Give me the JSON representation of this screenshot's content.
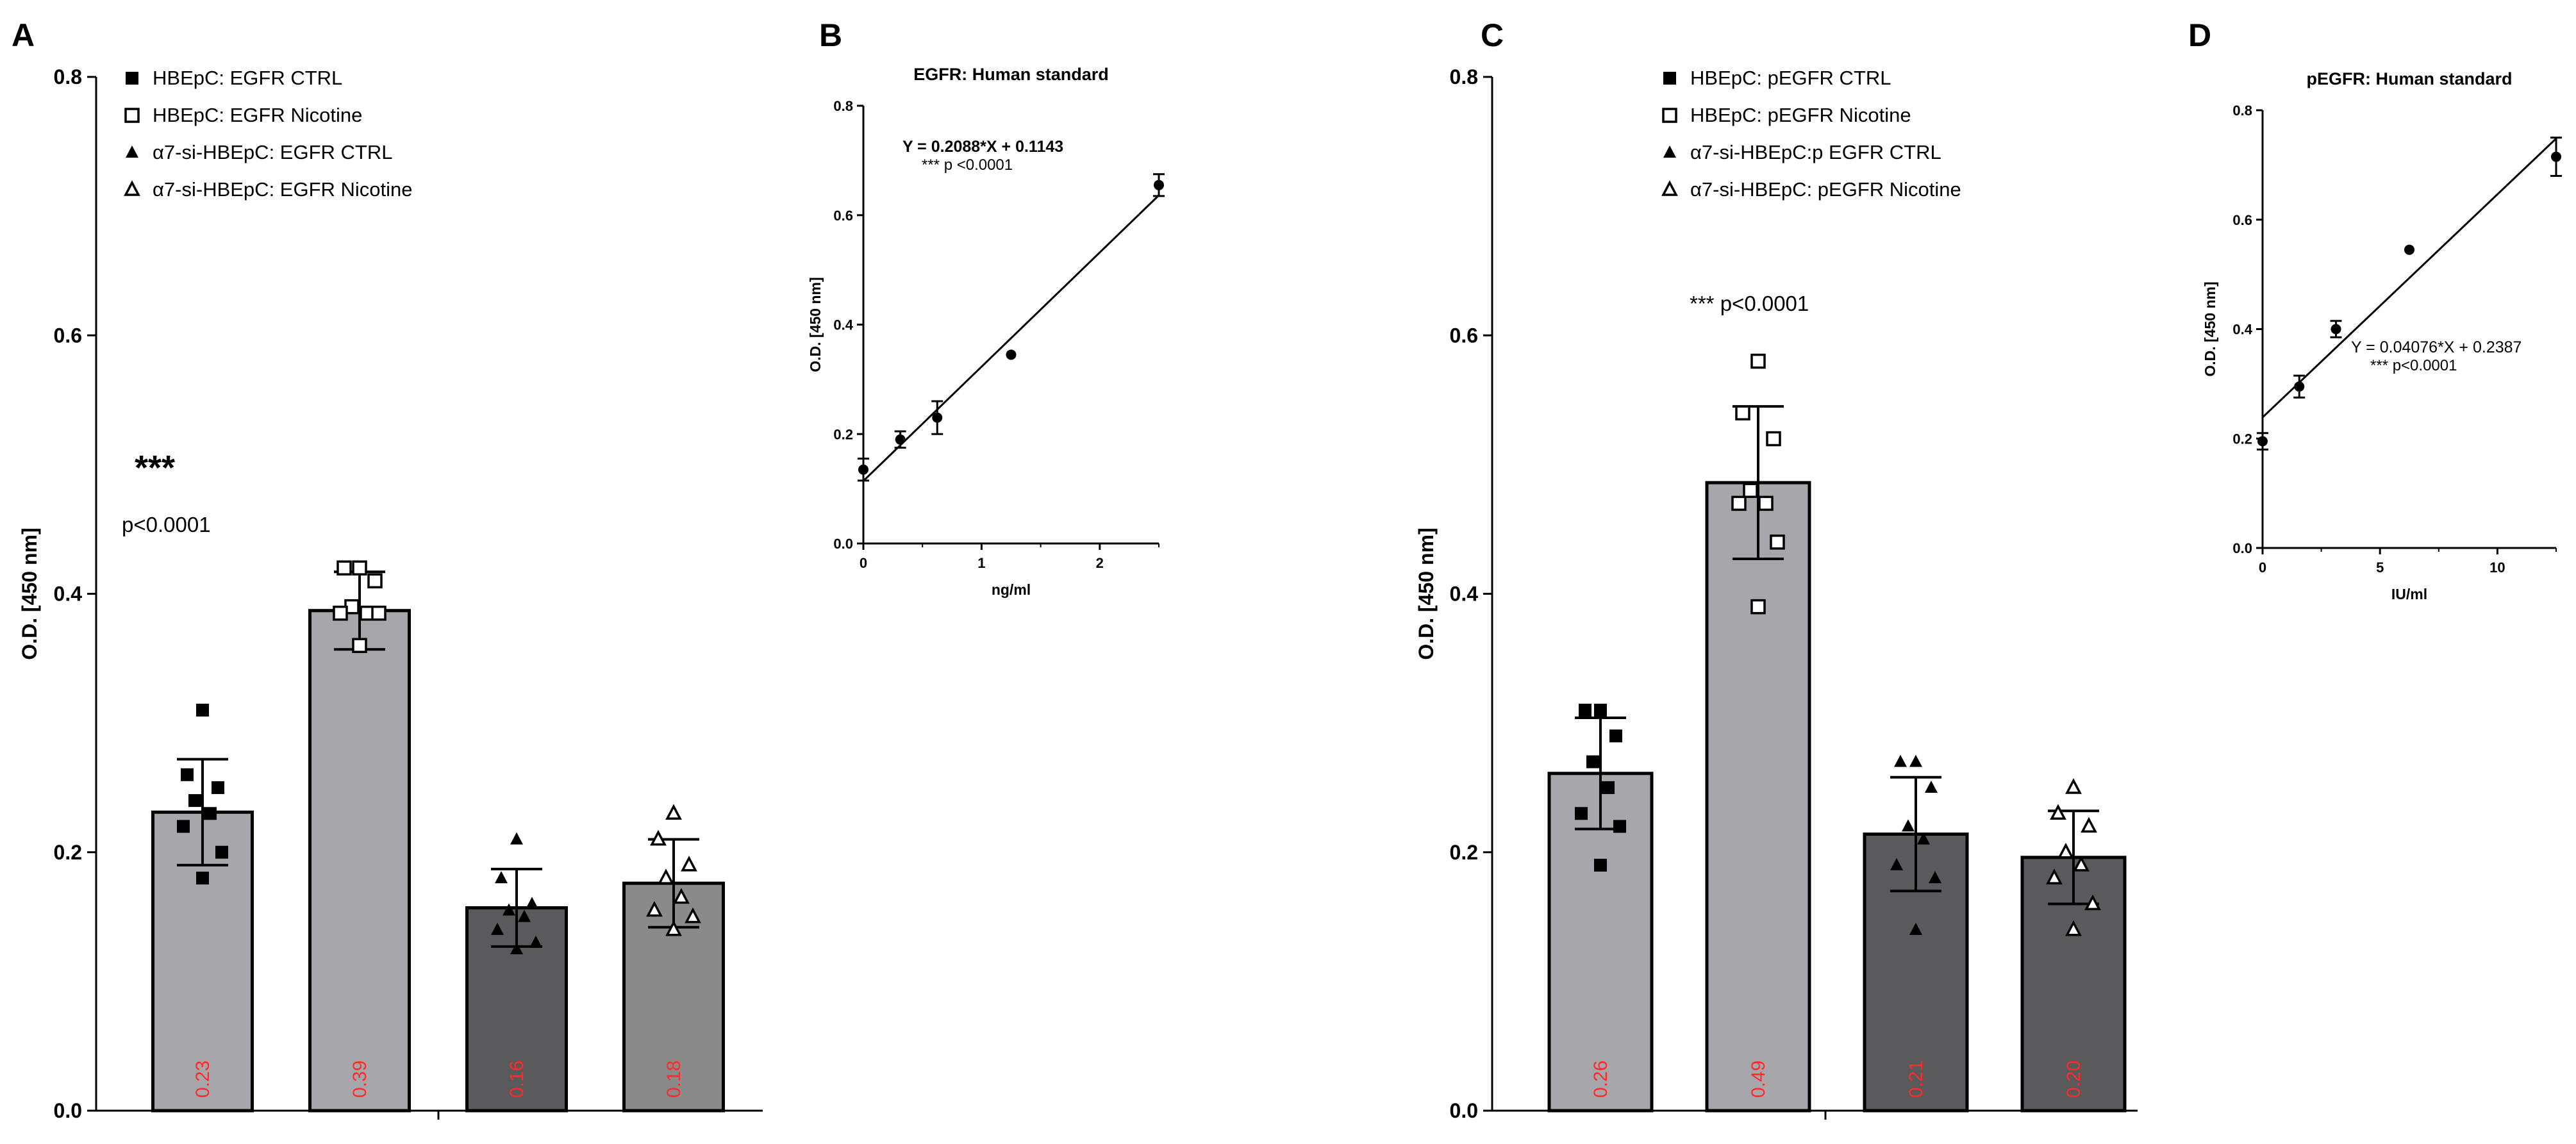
{
  "colors": {
    "ink": "#000000",
    "bar_light": "#a6a6ab",
    "bar_dark": "#5a5a5c",
    "bar_mid": "#8a8a8a",
    "value_label": "#ff2a2a"
  },
  "chart_data": [
    {
      "panel": "A",
      "type": "bar",
      "title": "",
      "ylabel": "O.D. [450 nm]",
      "ylim": [
        0,
        0.8
      ],
      "yticks": [
        "0.0",
        "0.2",
        "0.4",
        "0.6",
        "0.8"
      ],
      "annotation_stars": "***",
      "annotation_p": "p<0.0001",
      "legend": [
        {
          "label": "HBEpC: EGFR CTRL",
          "marker": "filled-square"
        },
        {
          "label": "HBEpC: EGFR Nicotine",
          "marker": "open-square"
        },
        {
          "label": "α7-si-HBEpC: EGFR CTRL",
          "marker": "filled-triangle"
        },
        {
          "label": "α7-si-HBEpC: EGFR Nicotine",
          "marker": "open-triangle"
        }
      ],
      "bars": [
        {
          "mean": 0.231,
          "sd": 0.041,
          "label": "0.23",
          "color": "light",
          "marker": "filled-square",
          "points": [
            0.31,
            0.26,
            0.25,
            0.24,
            0.23,
            0.22,
            0.2,
            0.18
          ]
        },
        {
          "mean": 0.387,
          "sd": 0.03,
          "label": "0.39",
          "color": "light",
          "marker": "open-square",
          "points": [
            0.42,
            0.42,
            0.41,
            0.39,
            0.385,
            0.385,
            0.385,
            0.36
          ]
        },
        {
          "mean": 0.157,
          "sd": 0.03,
          "label": "0.16",
          "color": "dark",
          "marker": "filled-triangle",
          "points": [
            0.21,
            0.18,
            0.16,
            0.155,
            0.15,
            0.14,
            0.13,
            0.125
          ]
        },
        {
          "mean": 0.176,
          "sd": 0.034,
          "label": "0.18",
          "color": "mid",
          "marker": "open-triangle",
          "points": [
            0.23,
            0.21,
            0.19,
            0.18,
            0.165,
            0.155,
            0.15,
            0.14
          ]
        }
      ]
    },
    {
      "panel": "B",
      "type": "scatter",
      "title": "EGFR: Human standard",
      "xlabel": "ng/ml",
      "ylabel": "O.D. [450 nm]",
      "xlim": [
        0,
        2.5
      ],
      "ylim": [
        0,
        0.8
      ],
      "xticks": [
        "0",
        "1",
        "2"
      ],
      "yticks": [
        "0.0",
        "0.2",
        "0.4",
        "0.6",
        "0.8"
      ],
      "equation": "Y = 0.2088*X + 0.1143",
      "pvalue": "*** p <0.0001",
      "fit": {
        "slope": 0.2088,
        "intercept": 0.1143
      },
      "points": [
        {
          "x": 0,
          "y": 0.135,
          "err": 0.02
        },
        {
          "x": 0.3125,
          "y": 0.19,
          "err": 0.015
        },
        {
          "x": 0.625,
          "y": 0.23,
          "err": 0.03
        },
        {
          "x": 1.25,
          "y": 0.345,
          "err": 0
        },
        {
          "x": 2.5,
          "y": 0.655,
          "err": 0.02
        }
      ]
    },
    {
      "panel": "C",
      "type": "bar",
      "title": "",
      "ylabel": "O.D. [450 nm]",
      "ylim": [
        0,
        0.8
      ],
      "yticks": [
        "0.0",
        "0.2",
        "0.4",
        "0.6",
        "0.8"
      ],
      "annotation": "*** p<0.0001",
      "legend": [
        {
          "label": "HBEpC: pEGFR CTRL",
          "marker": "filled-square"
        },
        {
          "label": "HBEpC: pEGFR Nicotine",
          "marker": "open-square"
        },
        {
          "label": "α7-si-HBEpC:p EGFR CTRL",
          "marker": "filled-triangle"
        },
        {
          "label": "α7-si-HBEpC: pEGFR Nicotine",
          "marker": "open-triangle"
        }
      ],
      "bars": [
        {
          "mean": 0.261,
          "sd": 0.043,
          "label": "0.26",
          "color": "light",
          "marker": "filled-square",
          "points": [
            0.31,
            0.31,
            0.29,
            0.27,
            0.25,
            0.23,
            0.22,
            0.19
          ]
        },
        {
          "mean": 0.486,
          "sd": 0.059,
          "label": "0.49",
          "color": "light",
          "marker": "open-square",
          "points": [
            0.58,
            0.54,
            0.52,
            0.48,
            0.47,
            0.47,
            0.44,
            0.39
          ]
        },
        {
          "mean": 0.214,
          "sd": 0.044,
          "label": "0.21",
          "color": "dark",
          "marker": "filled-triangle",
          "points": [
            0.27,
            0.27,
            0.25,
            0.22,
            0.21,
            0.19,
            0.18,
            0.14
          ]
        },
        {
          "mean": 0.196,
          "sd": 0.036,
          "label": "0.20",
          "color": "dark",
          "marker": "open-triangle",
          "points": [
            0.25,
            0.23,
            0.22,
            0.2,
            0.19,
            0.18,
            0.16,
            0.14
          ]
        }
      ]
    },
    {
      "panel": "D",
      "type": "scatter",
      "title": "pEGFR: Human standard",
      "xlabel": "IU/ml",
      "ylabel": "O.D. [450 nm]",
      "xlim": [
        0,
        12.5
      ],
      "ylim": [
        0,
        0.8
      ],
      "xticks": [
        "0",
        "5",
        "10"
      ],
      "yticks": [
        "0.0",
        "0.2",
        "0.4",
        "0.6",
        "0.8"
      ],
      "equation": "Y = 0.04076*X + 0.2387",
      "pvalue": "*** p<0.0001",
      "fit": {
        "slope": 0.04076,
        "intercept": 0.2387
      },
      "points": [
        {
          "x": 0,
          "y": 0.195,
          "err": 0.015
        },
        {
          "x": 1.5625,
          "y": 0.295,
          "err": 0.02
        },
        {
          "x": 3.125,
          "y": 0.4,
          "err": 0.015
        },
        {
          "x": 6.25,
          "y": 0.545,
          "err": 0
        },
        {
          "x": 12.5,
          "y": 0.715,
          "err": 0.035
        }
      ]
    }
  ]
}
